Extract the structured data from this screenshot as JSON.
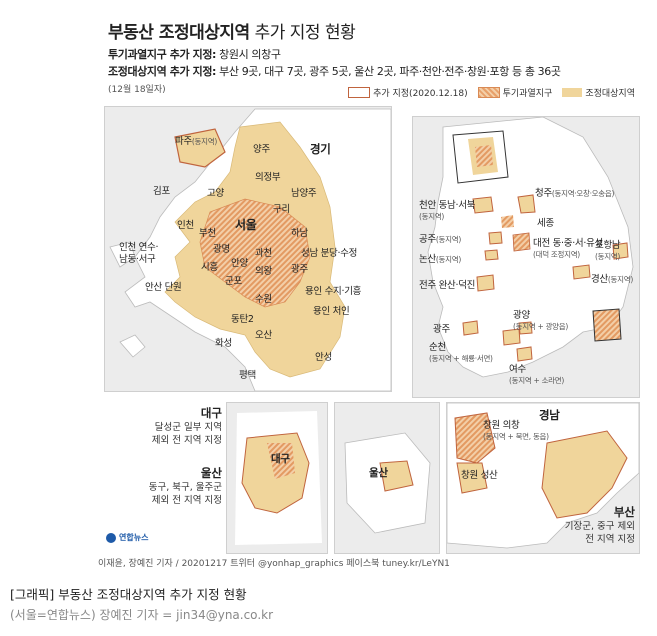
{
  "title": {
    "bold": "부동산 조정대상지역",
    "rest": " 추가 지정 현황"
  },
  "lines": [
    {
      "label": "투기과열지구 추가 지정:",
      "text": " 창원시 의창구"
    },
    {
      "label": "조정대상지역 추가 지정:",
      "text": " 부산 9곳, 대구 7곳, 광주 5곳, 울산 2곳, 파주·천안·전주·창원·포항 등 총 36곳"
    }
  ],
  "date_note": "(12월 18일자)",
  "legend": [
    {
      "label": "추가 지정(2020.12.18)",
      "swatch": "new"
    },
    {
      "label": "투기과열지구",
      "swatch": "over"
    },
    {
      "label": "조정대상지역",
      "swatch": "adj"
    }
  ],
  "colors": {
    "adjusted": "#f0d59b",
    "overheated": "#e8a06a",
    "new_outline": "#c0643e",
    "land": "#ffffff",
    "sea": "#ececec"
  },
  "capital": {
    "region": "경기",
    "labels": [
      {
        "name": "파주",
        "note": "(동지역)"
      },
      {
        "name": "양주",
        "note": ""
      },
      {
        "name": "의정부",
        "note": ""
      },
      {
        "name": "김포",
        "note": ""
      },
      {
        "name": "고양",
        "note": ""
      },
      {
        "name": "남양주",
        "note": ""
      },
      {
        "name": "구리",
        "note": ""
      },
      {
        "name": "인천",
        "note": ""
      },
      {
        "name": "부천",
        "note": ""
      },
      {
        "name": "서울",
        "note": ""
      },
      {
        "name": "하남",
        "note": ""
      },
      {
        "name": "광명",
        "note": ""
      },
      {
        "name": "과천",
        "note": ""
      },
      {
        "name": "인천 연수·",
        "note": ""
      },
      {
        "name": "남동·서구",
        "note": ""
      },
      {
        "name": "시흥",
        "note": ""
      },
      {
        "name": "안양",
        "note": ""
      },
      {
        "name": "의왕",
        "note": ""
      },
      {
        "name": "성남 분당·수정",
        "note": ""
      },
      {
        "name": "광주",
        "note": ""
      },
      {
        "name": "군포",
        "note": ""
      },
      {
        "name": "안산 단원",
        "note": ""
      },
      {
        "name": "수원",
        "note": ""
      },
      {
        "name": "용인 수지·기흥",
        "note": ""
      },
      {
        "name": "동탄2",
        "note": ""
      },
      {
        "name": "용인 처인",
        "note": ""
      },
      {
        "name": "화성",
        "note": ""
      },
      {
        "name": "오산",
        "note": ""
      },
      {
        "name": "안성",
        "note": ""
      },
      {
        "name": "평택",
        "note": ""
      }
    ]
  },
  "nation": {
    "labels": [
      {
        "name": "청주",
        "note": "(동지역·오창·오송읍)"
      },
      {
        "name": "천안 동남·서북",
        "note": "(동지역)"
      },
      {
        "name": "세종",
        "note": ""
      },
      {
        "name": "공주",
        "note": "(동지역)"
      },
      {
        "name": "대전 동·중·서·유성",
        "note": "(대덕 조정지역)"
      },
      {
        "name": "포항남",
        "note": "(동지역)"
      },
      {
        "name": "논산",
        "note": "(동지역)"
      },
      {
        "name": "경산",
        "note": "(동지역)"
      },
      {
        "name": "전주 완산·덕진",
        "note": ""
      },
      {
        "name": "광양",
        "note": "(동지역 + 광양읍)"
      },
      {
        "name": "광주",
        "note": ""
      },
      {
        "name": "순천",
        "note": "(동지역 + 해룡·서면)"
      },
      {
        "name": "여수",
        "note": "(동지역 + 소라면)"
      }
    ]
  },
  "daegu": {
    "region": "대구",
    "desc1": "달성군 일부 지역",
    "desc2": "제외 전 지역 지정",
    "map_label": "대구"
  },
  "ulsan": {
    "region": "울산",
    "desc1": "동구, 북구, 울주군",
    "desc2": "제외 전 지역 지정",
    "map_label": "울산"
  },
  "gyeongnam": {
    "region": "경남",
    "label1": "창원 의창",
    "note1": "(동지역 + 북면, 동읍)",
    "label2": "창원 성산",
    "busan_region": "부산",
    "busan_desc1": "기장군, 중구 제외",
    "busan_desc2": "전 지역 지정"
  },
  "logo": "연합뉴스",
  "credit": "이재윤, 장예진 기자 / 20201217 트위터 @yonhap_graphics  페이스북 tuney.kr/LeYN1",
  "caption": "[그래픽] 부동산 조정대상지역 추가 지정 현황",
  "byline": "(서울=연합뉴스) 장예진 기자 = jin34@yna.co.kr"
}
